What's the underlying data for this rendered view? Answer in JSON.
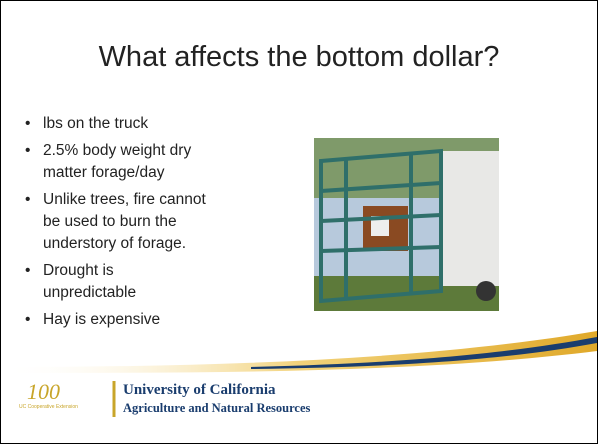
{
  "slide": {
    "title": "What affects the bottom dollar?",
    "bullets": [
      [
        "lbs on the truck"
      ],
      [
        "2.5% body weight dry",
        "matter forage/day"
      ],
      [
        "Unlike trees, fire cannot",
        "be used to burn the",
        "understory of forage."
      ],
      [
        "Drought is",
        "unpredictable"
      ],
      [
        "Hay is expensive"
      ]
    ]
  },
  "footer": {
    "logo_number": "100",
    "logo_unit": "UC Cooperative Extension",
    "university": "University of California",
    "division": "Agriculture and Natural Resources"
  }
}
